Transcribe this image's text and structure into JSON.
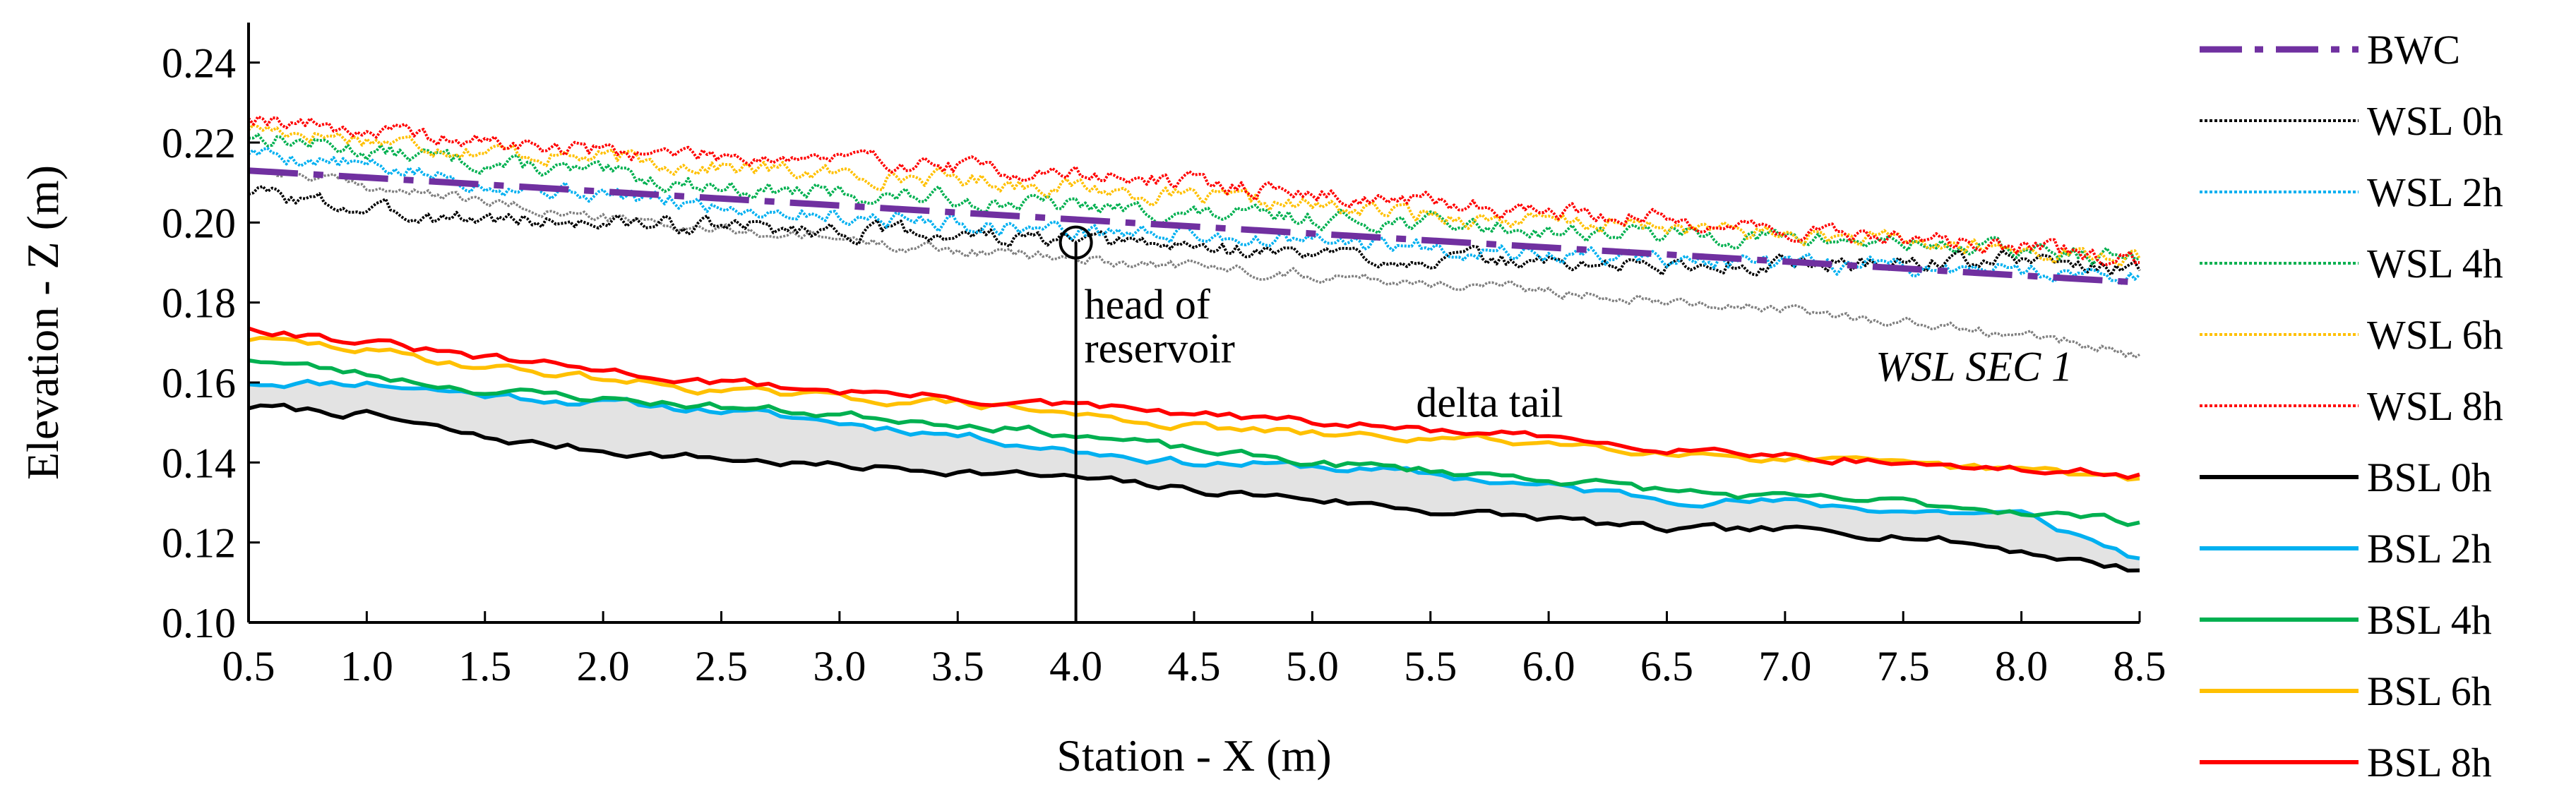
{
  "chart_data": {
    "type": "line",
    "title": "",
    "xlabel": "Station - X (m)",
    "ylabel": "Elevation - Z (m)",
    "xlim": [
      0.5,
      8.5
    ],
    "ylim": [
      0.1,
      0.25
    ],
    "x_ticks": [
      "0.5",
      "1.0",
      "1.5",
      "2.0",
      "2.5",
      "3.0",
      "3.5",
      "4.0",
      "4.5",
      "5.0",
      "5.5",
      "6.0",
      "6.5",
      "7.0",
      "7.5",
      "8.0",
      "8.5"
    ],
    "y_ticks": [
      "0.10",
      "0.12",
      "0.14",
      "0.16",
      "0.18",
      "0.20",
      "0.22",
      "0.24"
    ],
    "legend_position": "right",
    "series": [
      {
        "name": "BWC",
        "style": "dashdot",
        "color": "#7030a0",
        "x": [
          0.5,
          8.5
        ],
        "y": [
          0.213,
          0.185
        ]
      },
      {
        "name": "WSL 0h",
        "style": "dotted",
        "color": "#000000",
        "x": [
          0.5,
          1.0,
          1.5,
          2.0,
          2.5,
          3.0,
          3.5,
          4.0,
          4.5,
          5.0,
          5.5,
          6.0,
          6.5,
          7.0,
          7.5,
          8.0,
          8.5
        ],
        "y": [
          0.208,
          0.203,
          0.201,
          0.2,
          0.199,
          0.198,
          0.197,
          0.195,
          0.194,
          0.192,
          0.191,
          0.19,
          0.189,
          0.19,
          0.19,
          0.191,
          0.188
        ]
      },
      {
        "name": "WSL 2h",
        "style": "dotted",
        "color": "#00b0f0",
        "x": [
          0.5,
          1.0,
          1.5,
          2.0,
          2.5,
          3.0,
          3.5,
          4.0,
          4.5,
          5.0,
          5.5,
          6.0,
          6.5,
          7.0,
          7.5,
          8.0,
          8.5
        ],
        "y": [
          0.218,
          0.214,
          0.21,
          0.207,
          0.204,
          0.202,
          0.2,
          0.198,
          0.197,
          0.195,
          0.194,
          0.192,
          0.191,
          0.189,
          0.189,
          0.188,
          0.187
        ]
      },
      {
        "name": "WSL 4h",
        "style": "dotted",
        "color": "#00b050",
        "x": [
          0.5,
          1.0,
          1.5,
          2.0,
          2.5,
          3.0,
          3.5,
          4.0,
          4.5,
          5.0,
          5.5,
          6.0,
          6.5,
          7.0,
          7.5,
          8.0,
          8.5
        ],
        "y": [
          0.222,
          0.218,
          0.215,
          0.212,
          0.209,
          0.207,
          0.206,
          0.204,
          0.202,
          0.201,
          0.2,
          0.198,
          0.197,
          0.196,
          0.195,
          0.193,
          0.191
        ]
      },
      {
        "name": "WSL 6h",
        "style": "dotted",
        "color": "#ffc000",
        "x": [
          0.5,
          1.0,
          1.5,
          2.0,
          2.5,
          3.0,
          3.5,
          4.0,
          4.5,
          5.0,
          5.5,
          6.0,
          6.5,
          7.0,
          7.5,
          8.0,
          8.5
        ],
        "y": [
          0.224,
          0.221,
          0.218,
          0.216,
          0.214,
          0.212,
          0.211,
          0.209,
          0.206,
          0.204,
          0.202,
          0.2,
          0.199,
          0.197,
          0.195,
          0.193,
          0.191
        ]
      },
      {
        "name": "WSL 8h",
        "style": "dotted",
        "color": "#ff0000",
        "x": [
          0.5,
          1.0,
          1.5,
          2.0,
          2.5,
          3.0,
          3.5,
          4.0,
          4.5,
          5.0,
          5.5,
          6.0,
          6.5,
          7.0,
          7.5,
          8.0,
          8.5
        ],
        "y": [
          0.227,
          0.223,
          0.22,
          0.218,
          0.217,
          0.216,
          0.214,
          0.212,
          0.21,
          0.207,
          0.205,
          0.203,
          0.201,
          0.198,
          0.196,
          0.194,
          0.19
        ]
      },
      {
        "name": "BSL 0h",
        "style": "solid",
        "color": "#000000",
        "x": [
          0.5,
          1.0,
          1.5,
          2.0,
          2.5,
          3.0,
          3.5,
          4.0,
          4.5,
          5.0,
          5.5,
          6.0,
          6.5,
          7.0,
          7.5,
          8.0,
          8.5
        ],
        "y": [
          0.154,
          0.152,
          0.146,
          0.143,
          0.141,
          0.139,
          0.138,
          0.136,
          0.133,
          0.131,
          0.128,
          0.126,
          0.123,
          0.123,
          0.122,
          0.118,
          0.113
        ]
      },
      {
        "name": "BSL 2h",
        "style": "solid",
        "color": "#00b0f0",
        "x": [
          0.5,
          1.0,
          1.5,
          2.0,
          2.5,
          3.0,
          3.5,
          4.0,
          4.5,
          5.0,
          5.5,
          6.0,
          6.5,
          7.0,
          7.5,
          8.0,
          8.5
        ],
        "y": [
          0.16,
          0.16,
          0.157,
          0.155,
          0.153,
          0.15,
          0.147,
          0.143,
          0.14,
          0.139,
          0.137,
          0.134,
          0.131,
          0.13,
          0.128,
          0.127,
          0.116
        ]
      },
      {
        "name": "BSL 4h",
        "style": "solid",
        "color": "#00b050",
        "x": [
          0.5,
          1.0,
          1.5,
          2.0,
          2.5,
          3.0,
          3.5,
          4.0,
          4.5,
          5.0,
          5.5,
          6.0,
          6.5,
          7.0,
          7.5,
          8.0,
          8.5
        ],
        "y": [
          0.166,
          0.162,
          0.158,
          0.156,
          0.154,
          0.152,
          0.15,
          0.147,
          0.143,
          0.14,
          0.138,
          0.136,
          0.133,
          0.131,
          0.13,
          0.128,
          0.125
        ]
      },
      {
        "name": "BSL 6h",
        "style": "solid",
        "color": "#ffc000",
        "x": [
          0.5,
          1.0,
          1.5,
          2.0,
          2.5,
          3.0,
          3.5,
          4.0,
          4.5,
          5.0,
          5.5,
          6.0,
          6.5,
          7.0,
          7.5,
          8.0,
          8.5
        ],
        "y": [
          0.171,
          0.168,
          0.164,
          0.161,
          0.158,
          0.156,
          0.155,
          0.152,
          0.149,
          0.147,
          0.146,
          0.145,
          0.143,
          0.141,
          0.139,
          0.138,
          0.136
        ]
      },
      {
        "name": "BSL 8h",
        "style": "solid",
        "color": "#ff0000",
        "x": [
          0.5,
          1.0,
          1.5,
          2.0,
          2.5,
          3.0,
          3.5,
          4.0,
          4.5,
          5.0,
          5.5,
          6.0,
          6.5,
          7.0,
          7.5,
          8.0,
          8.5
        ],
        "y": [
          0.174,
          0.17,
          0.166,
          0.163,
          0.16,
          0.158,
          0.156,
          0.154,
          0.152,
          0.15,
          0.148,
          0.146,
          0.144,
          0.142,
          0.14,
          0.138,
          0.137
        ]
      }
    ],
    "reference_series": {
      "name": "WSL SEC 1",
      "color": "#808080",
      "x": [
        0.5,
        1.0,
        1.5,
        2.0,
        2.5,
        3.0,
        3.5,
        4.0,
        4.5,
        5.0,
        5.5,
        6.0,
        6.5,
        7.0,
        7.5,
        8.0,
        8.5
      ],
      "y": [
        0.214,
        0.209,
        0.205,
        0.201,
        0.198,
        0.196,
        0.193,
        0.191,
        0.189,
        0.187,
        0.185,
        0.183,
        0.181,
        0.178,
        0.175,
        0.172,
        0.167
      ]
    },
    "annotations": {
      "head_of_reservoir_line1": "head of",
      "head_of_reservoir_line2": "reservoir",
      "head_of_reservoir_x": 4.0,
      "head_of_reservoir_y": 0.195,
      "delta_tail": "delta tail",
      "delta_tail_x": 5.75,
      "delta_tail_y": 0.155,
      "wsl_sec1": "WSL SEC 1",
      "wsl_sec1_x": 7.8,
      "wsl_sec1_y": 0.164
    }
  }
}
